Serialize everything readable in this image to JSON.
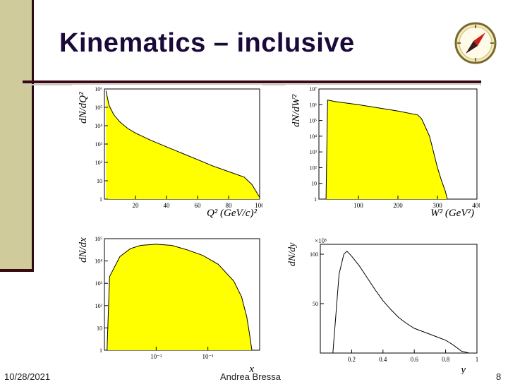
{
  "slide": {
    "title": "Kinematics – inclusive",
    "date": "10/28/2021",
    "author": "Andrea Bressa",
    "page": "8"
  },
  "logo": {
    "icon": "compass-icon"
  },
  "colors": {
    "fill": "#ffff00",
    "sidebar": "#cfcb9a",
    "rule": "#3a0a14"
  },
  "chart_data": [
    {
      "id": "q2",
      "type": "area",
      "ylabel": "dN/dQ²",
      "xlabel": "Q² (GeV/c)²",
      "xlim": [
        0,
        100
      ],
      "log_y": true,
      "ylim_exp": [
        0,
        6
      ],
      "xticks": [
        "20",
        "40",
        "60",
        "80",
        "100"
      ],
      "yticks": [
        "1",
        "10",
        "10²",
        "10³",
        "10⁴",
        "10⁵",
        "10⁶"
      ],
      "x": [
        1,
        3,
        6,
        10,
        15,
        20,
        30,
        40,
        50,
        60,
        70,
        80,
        90,
        95,
        100
      ],
      "y_exp": [
        5.9,
        5.1,
        4.6,
        4.2,
        3.85,
        3.6,
        3.2,
        2.85,
        2.5,
        2.15,
        1.8,
        1.5,
        1.2,
        0.8,
        0.1
      ]
    },
    {
      "id": "w2",
      "type": "area",
      "ylabel": "dN/dW²",
      "xlabel": "W² (GeV²)",
      "xlim": [
        0,
        400
      ],
      "log_y": true,
      "ylim_exp": [
        0,
        7
      ],
      "xticks": [
        "100",
        "200",
        "300",
        "400"
      ],
      "yticks": [
        "1",
        "10",
        "10²",
        "10³",
        "10⁴",
        "10⁵",
        "10⁶",
        "10⁷"
      ],
      "x": [
        18,
        22,
        40,
        100,
        150,
        200,
        250,
        260,
        280,
        290,
        300,
        310,
        320,
        325
      ],
      "y_exp": [
        0,
        6.3,
        6.2,
        6.0,
        5.8,
        5.6,
        5.35,
        5.1,
        4.0,
        3.0,
        2.0,
        1.2,
        0.5,
        0
      ]
    },
    {
      "id": "x",
      "type": "area",
      "ylabel": "dN/dx",
      "xlabel": "x",
      "log_x": true,
      "xlim_exp": [
        -3,
        0
      ],
      "log_y": true,
      "ylim_exp": [
        0,
        5
      ],
      "xticks": [
        "10⁻²",
        "10⁻¹"
      ],
      "yticks": [
        "1",
        "10",
        "10²",
        "10³",
        "10⁴",
        "10⁵"
      ],
      "x_exp": [
        -2.95,
        -2.9,
        -2.7,
        -2.5,
        -2.3,
        -2.0,
        -1.7,
        -1.4,
        -1.1,
        -0.8,
        -0.5,
        -0.35,
        -0.25,
        -0.2,
        -0.15
      ],
      "y_exp": [
        0,
        3.3,
        4.2,
        4.55,
        4.7,
        4.75,
        4.7,
        4.5,
        4.25,
        3.85,
        3.1,
        2.4,
        1.5,
        0.8,
        0
      ]
    },
    {
      "id": "y",
      "type": "line",
      "ylabel": "dN/dy",
      "xlabel": "y",
      "xlim": [
        0,
        1
      ],
      "ylim": [
        0,
        110
      ],
      "y_multiplier": "×10³",
      "xticks": [
        "0.2",
        "0.4",
        "0.6",
        "0.8",
        "1"
      ],
      "yticks": [
        "50",
        "100"
      ],
      "x": [
        0.08,
        0.1,
        0.12,
        0.15,
        0.17,
        0.2,
        0.25,
        0.3,
        0.35,
        0.4,
        0.45,
        0.5,
        0.55,
        0.6,
        0.7,
        0.75,
        0.8,
        0.85,
        0.9,
        0.95
      ],
      "y": [
        0,
        40,
        80,
        100,
        103,
        98,
        88,
        76,
        64,
        53,
        44,
        36,
        30,
        25,
        19,
        16,
        13,
        8,
        2,
        0
      ]
    }
  ]
}
